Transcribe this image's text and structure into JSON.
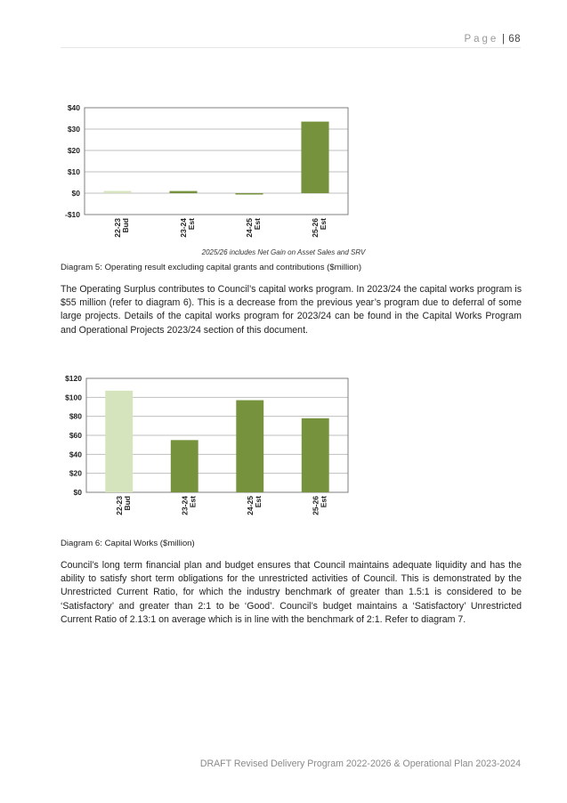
{
  "header": {
    "page_word": "Page",
    "separator": "|",
    "page_number": "68"
  },
  "diagram5": {
    "chart_data": {
      "type": "bar",
      "categories": [
        [
          "22-23",
          "Bud"
        ],
        [
          "23-24",
          "Est"
        ],
        [
          "24-25",
          "Est"
        ],
        [
          "25-26",
          "Est"
        ]
      ],
      "values": [
        1,
        1,
        -0.6,
        33.5
      ],
      "colors": [
        "#d6e4bd",
        "#76923c",
        "#76923c",
        "#76923c"
      ],
      "ylim": [
        -10,
        40
      ],
      "yticks": [
        -10,
        0,
        10,
        20,
        30,
        40
      ],
      "ytick_labels": [
        "-$10",
        "$0",
        "$10",
        "$20",
        "$30",
        "$40"
      ],
      "grid": true
    },
    "note": "2025/26 includes Net Gain on Asset Sales and SRV",
    "caption": "Diagram 5: Operating result excluding capital grants and contributions ($million)"
  },
  "paragraph1": "The Operating Surplus contributes to Council’s capital works program. In 2023/24 the capital works program is $55 million (refer to diagram 6). This is a decrease from the previous year’s program due to deferral of some large projects. Details of the capital works program for 2023/24 can be found in the Capital Works Program and Operational Projects 2023/24 section of this document.",
  "diagram6": {
    "chart_data": {
      "type": "bar",
      "categories": [
        [
          "22-23",
          "Bud"
        ],
        [
          "23-24",
          "Est"
        ],
        [
          "24-25",
          "Est"
        ],
        [
          "25-26",
          "Est"
        ]
      ],
      "values": [
        107,
        55,
        97,
        78
      ],
      "colors": [
        "#d6e4bd",
        "#76923c",
        "#76923c",
        "#76923c"
      ],
      "ylim": [
        0,
        120
      ],
      "yticks": [
        0,
        20,
        40,
        60,
        80,
        100,
        120
      ],
      "ytick_labels": [
        "$0",
        "$20",
        "$40",
        "$60",
        "$80",
        "$100",
        "$120"
      ],
      "grid": true
    },
    "caption": "Diagram 6: Capital Works ($million)"
  },
  "paragraph2": "Council’s long term financial plan and budget ensures that Council maintains adequate liquidity and has the ability to satisfy short term obligations for the unrestricted activities of Council. This is demonstrated by the Unrestricted Current Ratio, for which the industry benchmark of greater than 1.5:1 is considered to be ‘Satisfactory’ and greater than 2:1 to be ‘Good’. Council’s budget maintains a ‘Satisfactory’ Unrestricted Current Ratio of 2.13:1 on average which is in line with the benchmark of 2:1. Refer to diagram 7.",
  "footer": "DRAFT Revised Delivery Program 2022-2026 & Operational Plan 2023-2024"
}
